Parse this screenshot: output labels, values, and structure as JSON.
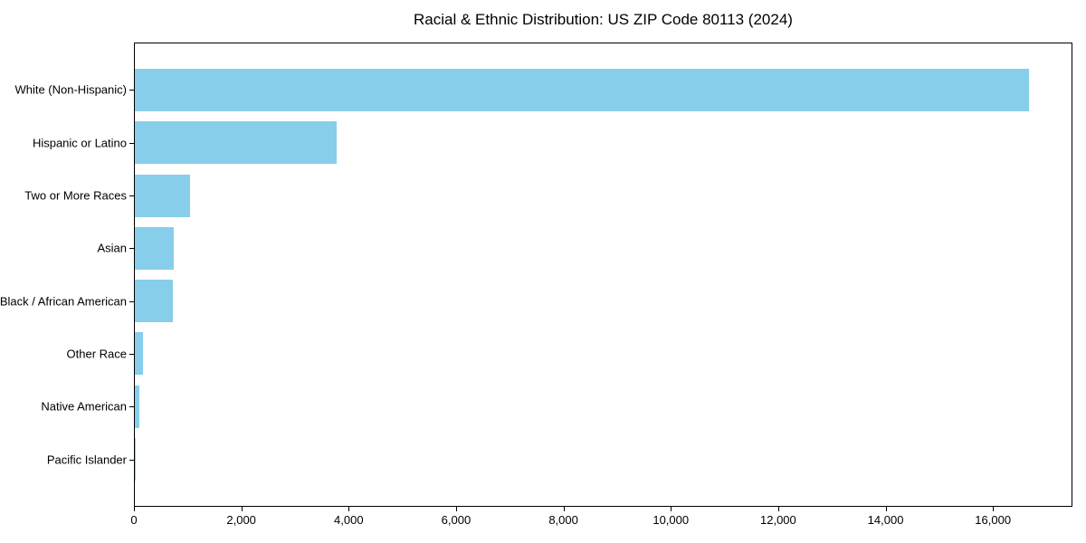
{
  "chart_data": {
    "type": "bar",
    "orientation": "horizontal",
    "title": "Racial & Ethnic Distribution: US ZIP Code 80113 (2024)",
    "categories": [
      "White (Non-Hispanic)",
      "Hispanic or Latino",
      "Two or More Races",
      "Asian",
      "Black / African American",
      "Other Race",
      "Native American",
      "Pacific Islander"
    ],
    "values": [
      16650,
      3760,
      1030,
      725,
      710,
      150,
      80,
      10
    ],
    "xlabel": "",
    "ylabel": "",
    "xlim": [
      0,
      17480
    ],
    "xticks": [
      0,
      2000,
      4000,
      6000,
      8000,
      10000,
      12000,
      14000,
      16000
    ],
    "xtick_labels": [
      "0",
      "2,000",
      "4,000",
      "6,000",
      "8,000",
      "10,000",
      "12,000",
      "14,000",
      "16,000"
    ],
    "grid": false,
    "legend": false,
    "bar_color": "#87ceeb",
    "axis_color": "#000000",
    "text_color": "#000000",
    "background_color": "#ffffff"
  }
}
